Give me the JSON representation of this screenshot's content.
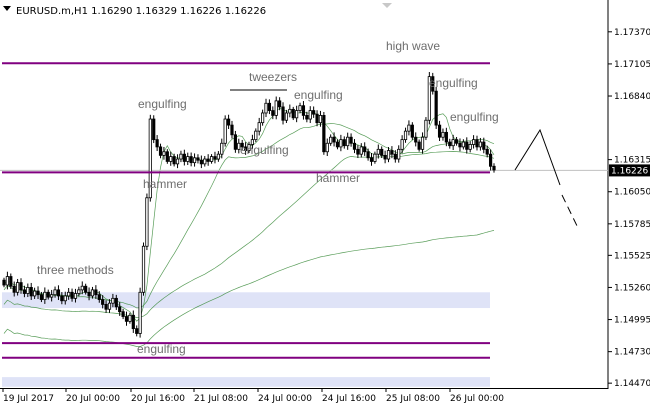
{
  "window": {
    "symbol_line": "EURUSD.m,H1  1.16290 1.16329 1.16226 1.16226"
  },
  "colors": {
    "background": "#ffffff",
    "candle": "#000000",
    "level_line": "#800080",
    "zone_fill": "#dfe3f7",
    "ma": "#3c8c3c",
    "annotation": "#6e6e6e",
    "current_price_bg": "#000000"
  },
  "chart_data": {
    "type": "candlestick",
    "symbol": "EURUSD.m",
    "timeframe": "H1",
    "ohlc_last": {
      "open": 1.1629,
      "high": 1.16329,
      "low": 1.16226,
      "close": 1.16226
    },
    "current_price": "1.16226",
    "y_ticks": [
      "1.17370",
      "1.17105",
      "1.16840",
      "1.16315",
      "1.16050",
      "1.15785",
      "1.15525",
      "1.15260",
      "1.14995",
      "1.14730",
      "1.14470"
    ],
    "y_tick_values": [
      1.1737,
      1.17105,
      1.1684,
      1.16315,
      1.1605,
      1.15785,
      1.15525,
      1.1526,
      1.14995,
      1.1473,
      1.1447
    ],
    "ylim": [
      1.1443,
      1.1755
    ],
    "x_ticks": [
      "19 Jul 2017",
      "20 Jul 00:00",
      "20 Jul 16:00",
      "21 Jul 08:00",
      "24 Jul 00:00",
      "24 Jul 16:00",
      "25 Jul 08:00",
      "26 Jul 00:00"
    ],
    "levels": [
      1.1711,
      1.1621,
      1.148,
      1.1468
    ],
    "zones": [
      [
        1.1509,
        1.1522
      ],
      [
        1.1444,
        1.1452
      ]
    ],
    "annotations": [
      "high wave",
      "engulfing",
      "engulfing",
      "tweezers",
      "engulfing",
      "engulfing",
      "engulfing",
      "hammer",
      "hammer",
      "three methods",
      "engulfing"
    ],
    "close_series": [
      1.1528,
      1.1535,
      1.1527,
      1.1522,
      1.153,
      1.1524,
      1.1521,
      1.1526,
      1.1519,
      1.1523,
      1.152,
      1.1516,
      1.1522,
      1.1518,
      1.152,
      1.1524,
      1.1519,
      1.1515,
      1.1519,
      1.1522,
      1.1517,
      1.1521,
      1.1524,
      1.1527,
      1.1522,
      1.1519,
      1.1524,
      1.152,
      1.1516,
      1.1512,
      1.1508,
      1.1513,
      1.1517,
      1.151,
      1.1506,
      1.1502,
      1.1498,
      1.1503,
      1.1492,
      1.1488,
      1.1522,
      1.156,
      1.16,
      1.1665,
      1.1648,
      1.1642,
      1.1635,
      1.1638,
      1.163,
      1.1634,
      1.1628,
      1.1632,
      1.1636,
      1.163,
      1.1634,
      1.1629,
      1.1633,
      1.1631,
      1.1628,
      1.1632,
      1.163,
      1.1634,
      1.1632,
      1.1636,
      1.1645,
      1.1665,
      1.166,
      1.1652,
      1.164,
      1.1645,
      1.1642,
      1.1639,
      1.1644,
      1.1648,
      1.1655,
      1.1662,
      1.167,
      1.1678,
      1.1672,
      1.1668,
      1.168,
      1.1675,
      1.1664,
      1.167,
      1.1673,
      1.1666,
      1.1672,
      1.1676,
      1.1668,
      1.1665,
      1.1672,
      1.1669,
      1.1662,
      1.1668,
      1.1638,
      1.1645,
      1.165,
      1.1646,
      1.1642,
      1.1648,
      1.1643,
      1.165,
      1.1645,
      1.164,
      1.1636,
      1.1642,
      1.1638,
      1.1633,
      1.163,
      1.1636,
      1.164,
      1.1635,
      1.1632,
      1.1639,
      1.1636,
      1.1632,
      1.164,
      1.1648,
      1.1655,
      1.166,
      1.165,
      1.1646,
      1.164,
      1.165,
      1.1664,
      1.17,
      1.1688,
      1.166,
      1.165,
      1.1654,
      1.1646,
      1.1643,
      1.1648,
      1.1645,
      1.1642,
      1.1646,
      1.164,
      1.1644,
      1.1648,
      1.1642,
      1.1646,
      1.164,
      1.1636,
      1.1626,
      1.1623
    ]
  }
}
